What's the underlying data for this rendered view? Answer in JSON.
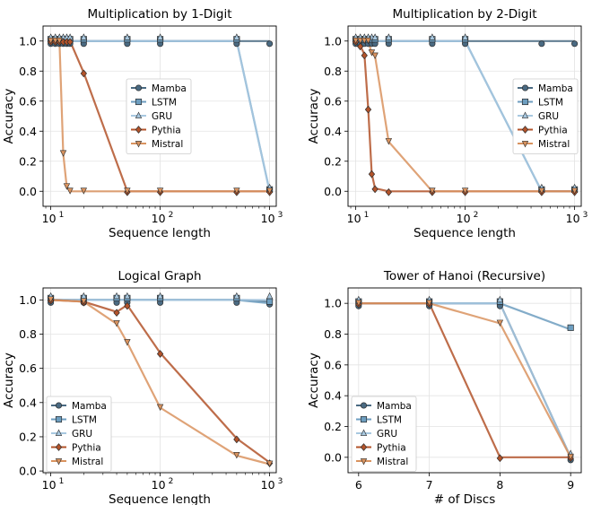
{
  "colors": {
    "Mamba": "#4a6a82",
    "LSTM": "#6d9ec0",
    "GRU": "#a8c8e0",
    "Pythia": "#b3532a",
    "Mistral": "#d9935f"
  },
  "chart_data": [
    {
      "type": "line",
      "title": "Multiplication by 1-Digit",
      "xlabel": "Sequence length",
      "ylabel": "Accuracy",
      "xscale": "log",
      "xlim": [
        8.5,
        1150
      ],
      "ylim": [
        -0.1,
        1.1
      ],
      "xticks": [
        {
          "v": 10,
          "base": "10",
          "exp": "1"
        },
        {
          "v": 100,
          "base": "10",
          "exp": "2"
        },
        {
          "v": 1000,
          "base": "10",
          "exp": "3"
        }
      ],
      "yticks": [
        0.0,
        0.2,
        0.4,
        0.6,
        0.8,
        1.0
      ],
      "ytick_labels": [
        "0.0",
        "0.2",
        "0.4",
        "0.6",
        "0.8",
        "1.0"
      ],
      "legend_position": "center-right",
      "grid": true,
      "series": [
        {
          "name": "Mamba",
          "marker": "circle",
          "x": [
            10,
            11,
            12,
            13,
            14,
            15,
            20,
            50,
            100,
            500,
            1000
          ],
          "y": [
            1.0,
            1.0,
            1.0,
            1.0,
            1.0,
            1.0,
            1.0,
            1.0,
            1.0,
            1.0,
            1.0
          ]
        },
        {
          "name": "LSTM",
          "marker": "square",
          "x": [
            10,
            11,
            12,
            13,
            14,
            15,
            20,
            50,
            100,
            500,
            1000
          ],
          "y": [
            1.0,
            1.0,
            1.0,
            1.0,
            1.0,
            1.0,
            1.0,
            1.0,
            1.0,
            1.0,
            0.0
          ]
        },
        {
          "name": "GRU",
          "marker": "triangle-up",
          "x": [
            10,
            11,
            12,
            13,
            14,
            15,
            20,
            50,
            100,
            500,
            1000
          ],
          "y": [
            1.0,
            1.0,
            1.0,
            1.0,
            1.0,
            1.0,
            1.0,
            1.0,
            1.0,
            1.0,
            0.0
          ]
        },
        {
          "name": "Pythia",
          "marker": "diamond",
          "x": [
            10,
            11,
            12,
            13,
            14,
            15,
            20,
            50,
            100,
            500,
            1000
          ],
          "y": [
            1.0,
            1.0,
            1.0,
            1.0,
            1.0,
            1.0,
            0.79,
            0.0,
            0.0,
            0.0,
            0.0
          ]
        },
        {
          "name": "Mistral",
          "marker": "triangle-down",
          "x": [
            10,
            11,
            12,
            13,
            14,
            15,
            20,
            50,
            100,
            500,
            1000
          ],
          "y": [
            1.0,
            1.0,
            1.0,
            0.25,
            0.03,
            0.0,
            0.0,
            0.0,
            0.0,
            0.0,
            0.0
          ]
        }
      ]
    },
    {
      "type": "line",
      "title": "Multiplication by 2-Digit",
      "xlabel": "Sequence length",
      "ylabel": "Accuracy",
      "xscale": "log",
      "xlim": [
        8.5,
        1150
      ],
      "ylim": [
        -0.1,
        1.1
      ],
      "xticks": [
        {
          "v": 10,
          "base": "10",
          "exp": "1"
        },
        {
          "v": 100,
          "base": "10",
          "exp": "2"
        },
        {
          "v": 1000,
          "base": "10",
          "exp": "3"
        }
      ],
      "yticks": [
        0.0,
        0.2,
        0.4,
        0.6,
        0.8,
        1.0
      ],
      "ytick_labels": [
        "0.0",
        "0.2",
        "0.4",
        "0.6",
        "0.8",
        "1.0"
      ],
      "legend_position": "center-right",
      "grid": true,
      "series": [
        {
          "name": "Mamba",
          "marker": "circle",
          "x": [
            10,
            11,
            12,
            13,
            14,
            15,
            20,
            50,
            100,
            500,
            1000
          ],
          "y": [
            1.0,
            1.0,
            1.0,
            1.0,
            1.0,
            1.0,
            1.0,
            1.0,
            1.0,
            1.0,
            1.0
          ]
        },
        {
          "name": "LSTM",
          "marker": "square",
          "x": [
            10,
            11,
            12,
            13,
            14,
            15,
            20,
            50,
            100,
            500,
            1000
          ],
          "y": [
            1.0,
            1.0,
            1.0,
            1.0,
            1.0,
            1.0,
            1.0,
            1.0,
            1.0,
            0.0,
            0.0
          ]
        },
        {
          "name": "GRU",
          "marker": "triangle-up",
          "x": [
            10,
            11,
            12,
            13,
            14,
            15,
            20,
            50,
            100,
            500,
            1000
          ],
          "y": [
            1.0,
            1.0,
            1.0,
            1.0,
            1.0,
            1.0,
            1.0,
            1.0,
            1.0,
            0.0,
            0.0
          ]
        },
        {
          "name": "Pythia",
          "marker": "diamond",
          "x": [
            10,
            11,
            12,
            13,
            14,
            15,
            20,
            50,
            100,
            500,
            1000
          ],
          "y": [
            1.0,
            0.97,
            0.91,
            0.55,
            0.12,
            0.02,
            0.0,
            0.0,
            0.0,
            0.0,
            0.0
          ]
        },
        {
          "name": "Mistral",
          "marker": "triangle-down",
          "x": [
            10,
            11,
            12,
            13,
            14,
            15,
            20,
            50,
            100,
            500,
            1000
          ],
          "y": [
            1.0,
            1.0,
            1.0,
            1.0,
            0.92,
            0.9,
            0.33,
            0.0,
            0.0,
            0.0,
            0.0
          ]
        }
      ]
    },
    {
      "type": "line",
      "title": "Logical Graph",
      "xlabel": "Sequence length",
      "ylabel": "Accuracy",
      "xscale": "log",
      "xlim": [
        8.5,
        1150
      ],
      "ylim": [
        -0.01,
        1.07
      ],
      "xticks": [
        {
          "v": 10,
          "base": "10",
          "exp": "1"
        },
        {
          "v": 100,
          "base": "10",
          "exp": "2"
        },
        {
          "v": 1000,
          "base": "10",
          "exp": "3"
        }
      ],
      "yticks": [
        0.0,
        0.2,
        0.4,
        0.6,
        0.8,
        1.0
      ],
      "ytick_labels": [
        "0.0",
        "0.2",
        "0.4",
        "0.6",
        "0.8",
        "1.0"
      ],
      "legend_position": "lower-left",
      "grid": true,
      "series": [
        {
          "name": "Mamba",
          "marker": "circle",
          "x": [
            10,
            20,
            40,
            50,
            100,
            500,
            1000
          ],
          "y": [
            1.0,
            1.0,
            1.0,
            1.0,
            1.0,
            1.0,
            0.99
          ]
        },
        {
          "name": "LSTM",
          "marker": "square",
          "x": [
            10,
            20,
            40,
            50,
            100,
            500,
            1000
          ],
          "y": [
            1.0,
            1.0,
            1.0,
            1.0,
            1.0,
            1.0,
            0.98
          ]
        },
        {
          "name": "GRU",
          "marker": "triangle-up",
          "x": [
            10,
            20,
            40,
            50,
            100,
            500,
            1000
          ],
          "y": [
            1.0,
            1.0,
            1.0,
            1.0,
            1.0,
            1.0,
            1.0
          ]
        },
        {
          "name": "Pythia",
          "marker": "diamond",
          "x": [
            10,
            20,
            40,
            50,
            100,
            500,
            1000
          ],
          "y": [
            1.0,
            0.99,
            0.93,
            0.97,
            0.69,
            0.19,
            0.05
          ]
        },
        {
          "name": "Mistral",
          "marker": "triangle-down",
          "x": [
            10,
            20,
            40,
            50,
            100,
            500,
            1000
          ],
          "y": [
            1.0,
            0.99,
            0.86,
            0.75,
            0.37,
            0.09,
            0.04
          ]
        }
      ]
    },
    {
      "type": "line",
      "title": "Tower of Hanoi (Recursive)",
      "xlabel": "# of Discs",
      "ylabel": "Accuracy",
      "xscale": "linear",
      "xlim": [
        5.85,
        9.15
      ],
      "ylim": [
        -0.1,
        1.1
      ],
      "xticks": [
        {
          "v": 6,
          "label": "6"
        },
        {
          "v": 7,
          "label": "7"
        },
        {
          "v": 8,
          "label": "8"
        },
        {
          "v": 9,
          "label": "9"
        }
      ],
      "yticks": [
        0.0,
        0.2,
        0.4,
        0.6,
        0.8,
        1.0
      ],
      "ytick_labels": [
        "0.0",
        "0.2",
        "0.4",
        "0.6",
        "0.8",
        "1.0"
      ],
      "legend_position": "lower-left",
      "grid": true,
      "series": [
        {
          "name": "Mamba",
          "marker": "circle",
          "x": [
            6,
            7,
            8,
            9
          ],
          "y": [
            1.0,
            1.0,
            1.0,
            0.0
          ]
        },
        {
          "name": "LSTM",
          "marker": "square",
          "x": [
            6,
            7,
            8,
            9
          ],
          "y": [
            1.0,
            1.0,
            1.0,
            0.83
          ]
        },
        {
          "name": "GRU",
          "marker": "triangle-up",
          "x": [
            6,
            7,
            8,
            9
          ],
          "y": [
            1.0,
            1.0,
            1.0,
            0.0
          ]
        },
        {
          "name": "Pythia",
          "marker": "diamond",
          "x": [
            6,
            7,
            8,
            9
          ],
          "y": [
            1.0,
            1.0,
            0.0,
            0.0
          ]
        },
        {
          "name": "Mistral",
          "marker": "triangle-down",
          "x": [
            6,
            7,
            8,
            9
          ],
          "y": [
            1.0,
            1.0,
            0.87,
            0.0
          ]
        }
      ]
    }
  ]
}
